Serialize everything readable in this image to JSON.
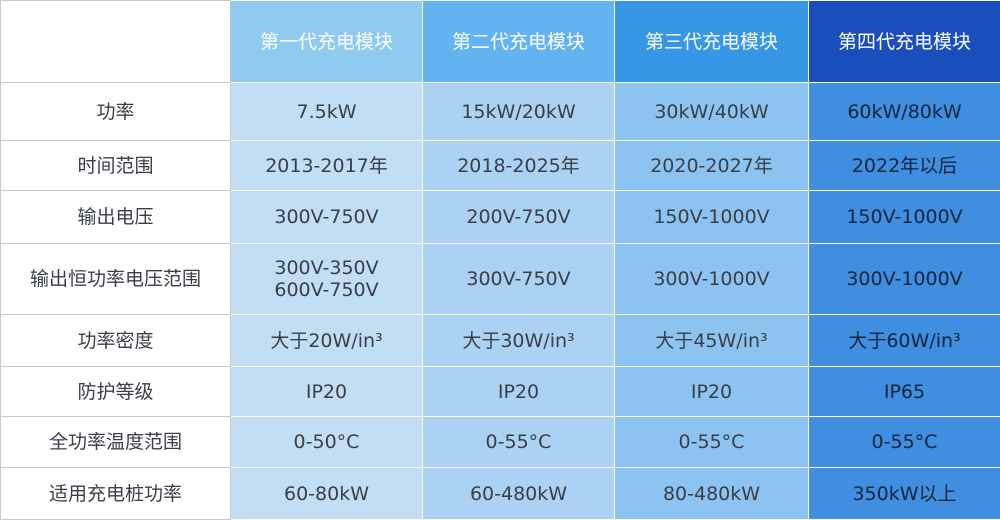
{
  "table": {
    "headers": [
      "第一代充电模块",
      "第二代充电模块",
      "第三代充电模块",
      "第四代充电模块"
    ],
    "rows": [
      [
        "功率",
        "7.5kW",
        "15kW/20kW",
        "30kW/40kW",
        "60kW/80kW"
      ],
      [
        "时间范围",
        "2013-2017年",
        "2018-2025年",
        "2020-2027年",
        "2022年以后"
      ],
      [
        "输出电压",
        "300V-750V",
        "200V-750V",
        "150V-1000V",
        "150V-1000V"
      ],
      [
        "输出恒功率电压范围",
        "300V-350V\n600V-750V",
        "300V-750V",
        "300V-1000V",
        "300V-1000V"
      ],
      [
        "功率密度",
        "大于20W/in³",
        "大于30W/in³",
        "大于45W/in³",
        "大于60W/in³"
      ],
      [
        "防护等级",
        "IP20",
        "IP20",
        "IP20",
        "IP65"
      ],
      [
        "全功率温度范围",
        "0-50°C",
        "0-55°C",
        "0-55°C",
        "0-55°C"
      ],
      [
        "适用充电桩功率",
        "60-80kW",
        "60-480kW",
        "80-480kW",
        "350kW以上"
      ]
    ]
  }
}
